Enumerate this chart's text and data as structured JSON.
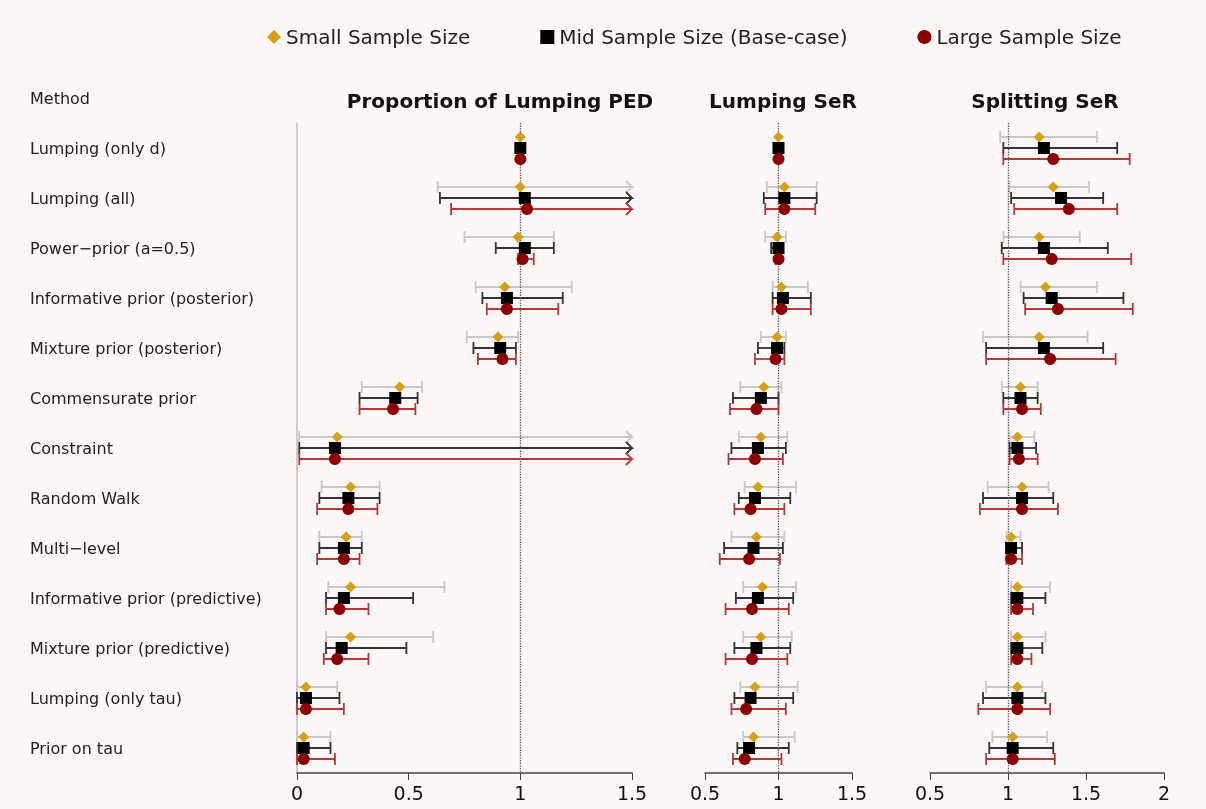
{
  "chart_data": [
    {
      "type": "scatter",
      "orientation": "horizontal",
      "title": "Proportion of Lumping PED",
      "ylabel": "Method",
      "legend": "top",
      "categories": [
        "Lumping (only d)",
        "Lumping (all)",
        "Power−prior (a=0.5)",
        "Informative prior (posterior)",
        "Mixture prior (posterior)",
        "Commensurate prior",
        "Constraint",
        "Random Walk",
        "Multi−level",
        "Informative prior (predictive)",
        "Mixture prior (predictive)",
        "Lumping (only tau)",
        "Prior on tau"
      ],
      "xlim": [
        0,
        1.5
      ],
      "xticks": [
        0,
        0.5,
        1,
        1.5
      ],
      "ref_lines": [
        {
          "axis": "x",
          "value": 1,
          "color": "#555555",
          "line_style": "dotted"
        }
      ],
      "series": [
        {
          "name": "Small Sample Size",
          "color": "#d4a017",
          "marker": "diamond",
          "values": [
            1.0,
            1.0,
            0.99,
            0.93,
            0.9,
            0.46,
            0.18,
            0.24,
            0.22,
            0.24,
            0.24,
            0.04,
            0.03
          ],
          "errors": [
            null,
            [
              0.63,
              1.5
            ],
            [
              0.75,
              1.15
            ],
            [
              0.8,
              1.23
            ],
            [
              0.76,
              0.99
            ],
            [
              0.29,
              0.56
            ],
            [
              0.01,
              1.5
            ],
            [
              0.11,
              0.37
            ],
            [
              0.1,
              0.29
            ],
            [
              0.14,
              0.66
            ],
            [
              0.13,
              0.61
            ],
            [
              0.0,
              0.18
            ],
            [
              0.0,
              0.15
            ]
          ]
        },
        {
          "name": "Mid Sample Size (Base-case)",
          "color": "#000000",
          "marker": "square",
          "values": [
            1.0,
            1.02,
            1.02,
            0.94,
            0.91,
            0.44,
            0.17,
            0.23,
            0.21,
            0.21,
            0.2,
            0.04,
            0.03
          ],
          "errors": [
            null,
            [
              0.64,
              1.5
            ],
            [
              0.89,
              1.15
            ],
            [
              0.83,
              1.19
            ],
            [
              0.79,
              0.98
            ],
            [
              0.28,
              0.54
            ],
            [
              0.01,
              1.5
            ],
            [
              0.1,
              0.37
            ],
            [
              0.1,
              0.29
            ],
            [
              0.13,
              0.52
            ],
            [
              0.13,
              0.49
            ],
            [
              0.0,
              0.19
            ],
            [
              0.0,
              0.15
            ]
          ]
        },
        {
          "name": "Large Sample Size",
          "color": "#8b0000",
          "marker": "circle",
          "values": [
            1.0,
            1.03,
            1.01,
            0.94,
            0.92,
            0.43,
            0.17,
            0.23,
            0.21,
            0.19,
            0.18,
            0.04,
            0.03
          ],
          "errors": [
            null,
            [
              0.69,
              1.5
            ],
            [
              0.99,
              1.06
            ],
            [
              0.85,
              1.17
            ],
            [
              0.81,
              0.98
            ],
            [
              0.28,
              0.53
            ],
            [
              0.01,
              1.5
            ],
            [
              0.09,
              0.36
            ],
            [
              0.09,
              0.28
            ],
            [
              0.13,
              0.32
            ],
            [
              0.12,
              0.32
            ],
            [
              0.0,
              0.21
            ],
            [
              0.0,
              0.17
            ]
          ]
        }
      ]
    },
    {
      "type": "scatter",
      "orientation": "horizontal",
      "title": "Lumping SeR",
      "tick_labels": "x",
      "categories": [
        null,
        null,
        null,
        null,
        null,
        null,
        null,
        null,
        null,
        null,
        null,
        null,
        null
      ],
      "xlim": [
        0.5,
        1.5
      ],
      "xticks": [
        0.5,
        1,
        1.5
      ],
      "ref_lines": [
        {
          "axis": "x",
          "value": 1,
          "color": "#555555",
          "line_style": "dotted"
        }
      ],
      "series": [
        {
          "color": "#d4a017",
          "marker": "diamond",
          "values": [
            1.0,
            1.04,
            0.99,
            1.02,
            0.99,
            0.9,
            0.88,
            0.86,
            0.85,
            0.89,
            0.88,
            0.84,
            0.83
          ],
          "errors": [
            null,
            [
              0.92,
              1.26
            ],
            [
              0.91,
              1.05
            ],
            [
              0.96,
              1.2
            ],
            [
              0.88,
              1.05
            ],
            [
              0.74,
              1.02
            ],
            [
              0.73,
              1.06
            ],
            [
              0.77,
              1.12
            ],
            [
              0.68,
              1.04
            ],
            [
              0.76,
              1.12
            ],
            [
              0.76,
              1.09
            ],
            [
              0.74,
              1.13
            ],
            [
              0.76,
              1.11
            ]
          ]
        },
        {
          "color": "#000000",
          "marker": "square",
          "values": [
            1.0,
            1.04,
            1.0,
            1.03,
            0.99,
            0.88,
            0.86,
            0.84,
            0.83,
            0.86,
            0.85,
            0.81,
            0.8
          ],
          "errors": [
            null,
            [
              0.9,
              1.26
            ],
            [
              0.95,
              1.03
            ],
            [
              0.96,
              1.22
            ],
            [
              0.86,
              1.04
            ],
            [
              0.69,
              1.0
            ],
            [
              0.68,
              1.05
            ],
            [
              0.73,
              1.08
            ],
            [
              0.63,
              1.03
            ],
            [
              0.71,
              1.1
            ],
            [
              0.7,
              1.08
            ],
            [
              0.7,
              1.1
            ],
            [
              0.72,
              1.07
            ]
          ]
        },
        {
          "color": "#8b0000",
          "marker": "circle",
          "values": [
            1.0,
            1.04,
            1.0,
            1.02,
            0.98,
            0.85,
            0.84,
            0.81,
            0.8,
            0.82,
            0.82,
            0.78,
            0.77
          ],
          "errors": [
            null,
            [
              0.91,
              1.25
            ],
            [
              0.98,
              1.01
            ],
            [
              0.96,
              1.22
            ],
            [
              0.84,
              1.04
            ],
            [
              0.67,
              1.0
            ],
            [
              0.66,
              1.03
            ],
            [
              0.7,
              1.04
            ],
            [
              0.6,
              1.01
            ],
            [
              0.64,
              1.07
            ],
            [
              0.64,
              1.06
            ],
            [
              0.68,
              1.05
            ],
            [
              0.69,
              1.02
            ]
          ]
        }
      ]
    },
    {
      "type": "scatter",
      "orientation": "horizontal",
      "title": "Splitting SeR",
      "tick_labels": "x",
      "categories": [
        null,
        null,
        null,
        null,
        null,
        null,
        null,
        null,
        null,
        null,
        null,
        null,
        null
      ],
      "xlim": [
        0.5,
        2
      ],
      "xticks": [
        0.5,
        1,
        1.5,
        2
      ],
      "ref_lines": [
        {
          "axis": "x",
          "value": 1,
          "color": "#555555",
          "line_style": "dotted"
        }
      ],
      "series": [
        {
          "color": "#d4a017",
          "marker": "diamond",
          "values": [
            1.2,
            1.29,
            1.2,
            1.24,
            1.2,
            1.08,
            1.06,
            1.09,
            1.02,
            1.06,
            1.06,
            1.06,
            1.03
          ],
          "errors": [
            [
              0.95,
              1.57
            ],
            [
              1.01,
              1.52
            ],
            [
              0.97,
              1.46
            ],
            [
              1.08,
              1.57
            ],
            [
              0.84,
              1.51
            ],
            [
              0.96,
              1.19
            ],
            [
              1.01,
              1.17
            ],
            [
              0.87,
              1.26
            ],
            [
              0.99,
              1.08
            ],
            [
              1.02,
              1.27
            ],
            [
              1.02,
              1.24
            ],
            [
              0.86,
              1.22
            ],
            [
              0.9,
              1.25
            ]
          ]
        },
        {
          "color": "#000000",
          "marker": "square",
          "values": [
            1.23,
            1.34,
            1.23,
            1.28,
            1.23,
            1.08,
            1.06,
            1.09,
            1.02,
            1.06,
            1.06,
            1.06,
            1.03
          ],
          "errors": [
            [
              0.97,
              1.7
            ],
            [
              1.02,
              1.61
            ],
            [
              0.96,
              1.64
            ],
            [
              1.1,
              1.74
            ],
            [
              0.86,
              1.61
            ],
            [
              0.97,
              1.19
            ],
            [
              1.01,
              1.18
            ],
            [
              0.84,
              1.29
            ],
            [
              0.99,
              1.09
            ],
            [
              1.02,
              1.24
            ],
            [
              1.02,
              1.22
            ],
            [
              0.84,
              1.24
            ],
            [
              0.88,
              1.29
            ]
          ]
        },
        {
          "color": "#8b0000",
          "marker": "circle",
          "values": [
            1.29,
            1.39,
            1.28,
            1.32,
            1.27,
            1.09,
            1.07,
            1.09,
            1.02,
            1.06,
            1.06,
            1.06,
            1.03
          ],
          "errors": [
            [
              0.97,
              1.78
            ],
            [
              1.04,
              1.7
            ],
            [
              0.97,
              1.79
            ],
            [
              1.11,
              1.8
            ],
            [
              0.86,
              1.69
            ],
            [
              0.97,
              1.21
            ],
            [
              1.01,
              1.19
            ],
            [
              0.82,
              1.32
            ],
            [
              0.99,
              1.09
            ],
            [
              1.02,
              1.16
            ],
            [
              1.02,
              1.15
            ],
            [
              0.81,
              1.27
            ],
            [
              0.86,
              1.3
            ]
          ]
        }
      ]
    }
  ]
}
